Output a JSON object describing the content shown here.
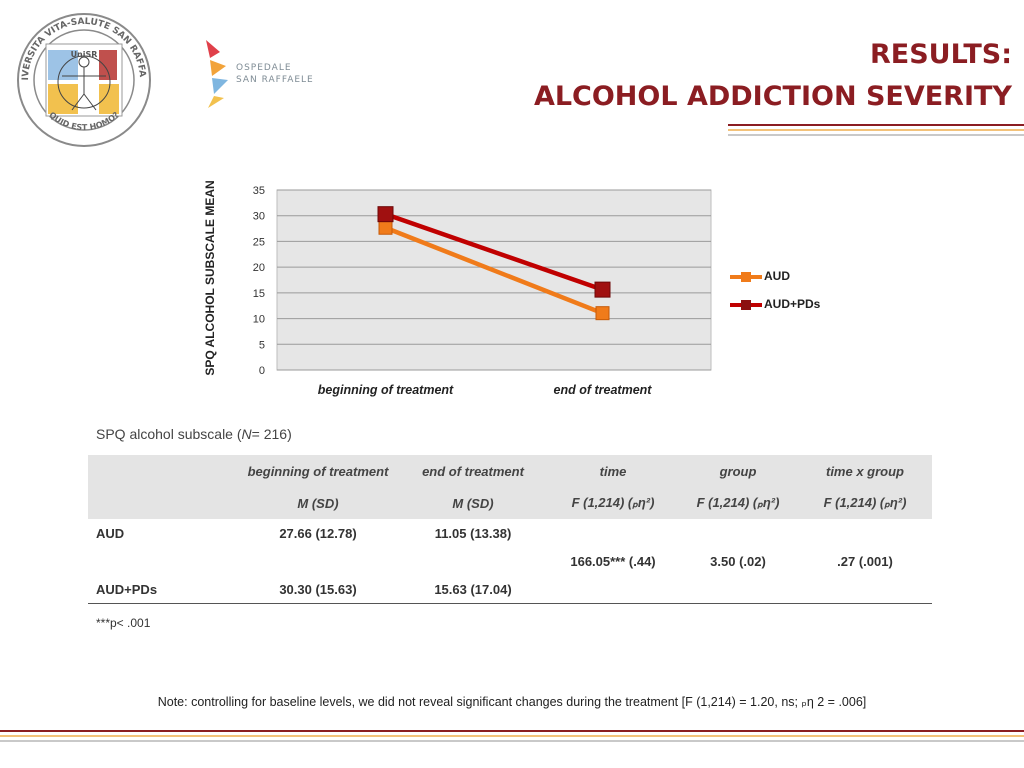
{
  "header": {
    "title_line1": "RESULTS:",
    "title_line2": "ALCOHOL ADDICTION SEVERITY",
    "seal_text_top": "UNIVERSITA VITA-SALUTE SAN RAFFAELE",
    "seal_center": "UniSR",
    "seal_bottom": "QUID EST HOMO?",
    "hospital_line1": "OSPEDALE",
    "hospital_line2": "SAN RAFFAELE"
  },
  "colors": {
    "accent": "#8b1d22",
    "aud": "#f07b1a",
    "aud_pds": "#c00000",
    "plot_bg": "#e6e6e6"
  },
  "chart_data": {
    "type": "line",
    "categories": [
      "beginning of treatment",
      "end of treatment"
    ],
    "series": [
      {
        "name": "AUD",
        "values": [
          27.66,
          11.05
        ],
        "color": "#f07b1a"
      },
      {
        "name": "AUD+PDs",
        "values": [
          30.3,
          15.63
        ],
        "color": "#c00000"
      }
    ],
    "ylabel": "SPQ ALCOHOL SUBSCALE MEAN",
    "ylim": [
      0,
      35
    ],
    "yticks": [
      0,
      5,
      10,
      15,
      20,
      25,
      30,
      35
    ],
    "grid": true,
    "legend": "right"
  },
  "table": {
    "caption_prefix": "SPQ alcohol subscale (",
    "caption_n": "N",
    "caption_suffix": "= 216)",
    "headers": [
      "",
      "beginning of treatment",
      "end of treatment",
      "time",
      "group",
      "time x group"
    ],
    "subheaders": [
      "",
      "M (SD)",
      "M (SD)",
      "F (1,214) (ₚη²)",
      "F (1,214) (ₚη²)",
      "F (1,214) (ₚη²)"
    ],
    "rows": [
      [
        "AUD",
        "27.66 (12.78)",
        "11.05 (13.38)",
        "",
        "",
        ""
      ],
      [
        "",
        "",
        "",
        "166.05*** (.44)",
        "3.50 (.02)",
        ".27 (.001)"
      ],
      [
        "AUD+PDs",
        "30.30 (15.63)",
        "15.63 (17.04)",
        "",
        "",
        ""
      ]
    ],
    "footnote": "***p< .001"
  },
  "note": "Note: controlling for baseline levels, we did not reveal significant changes during the treatment [F (1,214) = 1.20, ns; ₚη 2 = .006]"
}
